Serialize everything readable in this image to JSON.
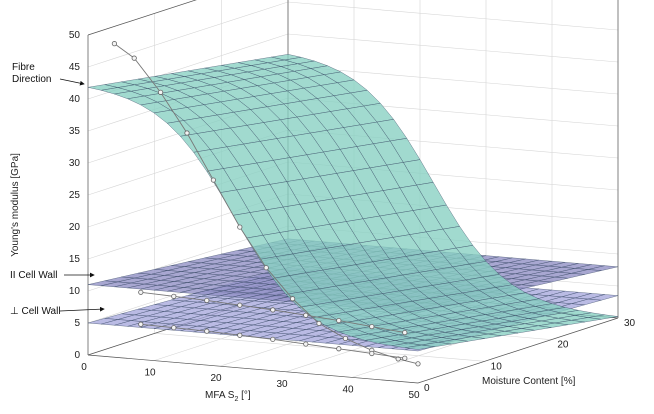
{
  "chart_data": {
    "type": "surface3d",
    "axes": {
      "z": {
        "label": "Young's modulus [GPa]",
        "range": [
          0,
          50
        ],
        "ticks": [
          0,
          5,
          10,
          15,
          20,
          25,
          30,
          35,
          40,
          45,
          50
        ]
      },
      "x": {
        "label_main": "MFA S",
        "label_sub": "2",
        "label_unit": " [°]",
        "range": [
          0,
          50
        ],
        "ticks": [
          0,
          10,
          20,
          30,
          40,
          50
        ]
      },
      "y": {
        "label": "Moisture Content [%]",
        "range": [
          0,
          30
        ],
        "ticks": [
          0,
          10,
          20,
          30
        ]
      }
    },
    "grid": true,
    "annotations": [
      {
        "text_lines": [
          "Fibre",
          "Direction"
        ],
        "target": "fibre-surface"
      },
      {
        "text_lines": [
          "II Cell Wall"
        ],
        "target": "parallel-surface"
      },
      {
        "text_lines": [
          "⊥ Cell Wall"
        ],
        "target": "perp-surface"
      }
    ],
    "surfaces": [
      {
        "id": "fibre",
        "value_at_mfa0": 42.5,
        "value_at_mfa50": 5,
        "moisture_decrease_per_30pct": 5,
        "color": "#86cfc2"
      },
      {
        "id": "parallel",
        "value_at_moisture0": 11,
        "value_at_moisture30": 8,
        "color": "#8f8ec4"
      },
      {
        "id": "perp",
        "value_at_moisture0": 5,
        "value_at_moisture30": 3.5,
        "color": "#a7a8dc"
      }
    ],
    "series": [
      {
        "id": "fibre-trace",
        "x": [
          4,
          7,
          11,
          15,
          19,
          23,
          27,
          31,
          35,
          39,
          43,
          47,
          50
        ],
        "y": [
          0,
          0,
          0,
          0,
          0,
          0,
          0,
          0,
          0,
          0,
          0,
          0,
          0
        ],
        "z": [
          49,
          47,
          42,
          36,
          29,
          22,
          16,
          11.5,
          8,
          6,
          4.5,
          3.5,
          3
        ]
      },
      {
        "id": "parallel-trace",
        "x": [
          8,
          13,
          18,
          23,
          28,
          33,
          38,
          43,
          48
        ],
        "y": [
          0,
          0,
          0,
          0,
          0,
          0,
          0,
          0,
          0
        ],
        "z": [
          10.5,
          10.3,
          10.1,
          9.8,
          9.5,
          9.1,
          8.7,
          8.2,
          7.7
        ]
      },
      {
        "id": "perp-trace",
        "x": [
          8,
          13,
          18,
          23,
          28,
          33,
          38,
          43,
          48
        ],
        "y": [
          0,
          0,
          0,
          0,
          0,
          0,
          0,
          0,
          0
        ],
        "z": [
          5.5,
          5.4,
          5.3,
          5.1,
          4.9,
          4.6,
          4.3,
          4.0,
          3.7
        ]
      }
    ]
  }
}
